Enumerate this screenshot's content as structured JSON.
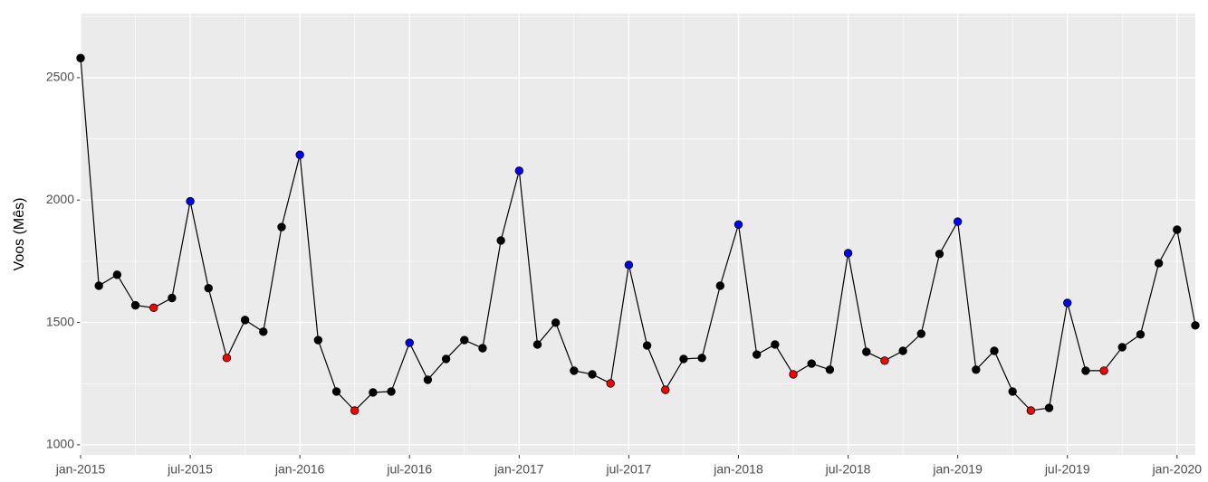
{
  "chart_data": {
    "type": "line",
    "y_label": "Voos (Mês)",
    "categories": [
      "jan-2015",
      null,
      null,
      null,
      null,
      null,
      "jul-2015",
      null,
      null,
      null,
      null,
      null,
      "jan-2016",
      null,
      null,
      null,
      null,
      null,
      "jul-2016",
      null,
      null,
      null,
      null,
      null,
      "jan-2017",
      null,
      null,
      null,
      null,
      null,
      "jul-2017",
      null,
      null,
      null,
      null,
      null,
      "jan-2018",
      null,
      null,
      null,
      null,
      null,
      "jul-2018",
      null,
      null,
      null,
      null,
      null,
      "jan-2019",
      null,
      null,
      null,
      null,
      null,
      "jul-2019",
      null,
      null,
      null,
      null,
      null,
      "jan-2020",
      null
    ],
    "series": [
      {
        "color": "#000000",
        "values": [
          2580,
          1650,
          1695,
          1570,
          1560,
          1600,
          1995,
          1640,
          1355,
          1510,
          1462,
          1890,
          2185,
          1428,
          1218,
          1140,
          1214,
          1218,
          1417,
          1266,
          1351,
          1428,
          1395,
          1835,
          2120,
          1410,
          1499,
          1303,
          1288,
          1251,
          1735,
          1406,
          1225,
          1351,
          1355,
          1650,
          1900,
          1369,
          1410,
          1288,
          1332,
          1307,
          1783,
          1380,
          1344,
          1384,
          1454,
          1780,
          1912,
          1307,
          1384,
          1218,
          1140,
          1151,
          1580,
          1303,
          1303,
          1399,
          1451,
          1742,
          1879,
          1488
        ],
        "point_colors": [
          "#000000",
          "#000000",
          "#000000",
          "#000000",
          "#ff0000",
          "#000000",
          "#0000ff",
          "#000000",
          "#ff0000",
          "#000000",
          "#000000",
          "#000000",
          "#0000ff",
          "#000000",
          "#000000",
          "#ff0000",
          "#000000",
          "#000000",
          "#0000ff",
          "#000000",
          "#000000",
          "#000000",
          "#000000",
          "#000000",
          "#0000ff",
          "#000000",
          "#000000",
          "#000000",
          "#000000",
          "#ff0000",
          "#0000ff",
          "#000000",
          "#ff0000",
          "#000000",
          "#000000",
          "#000000",
          "#0000ff",
          "#000000",
          "#000000",
          "#ff0000",
          "#000000",
          "#000000",
          "#0000ff",
          "#000000",
          "#ff0000",
          "#000000",
          "#000000",
          "#000000",
          "#0000ff",
          "#000000",
          "#000000",
          "#000000",
          "#ff0000",
          "#000000",
          "#0000ff",
          "#000000",
          "#ff0000",
          "#000000",
          "#000000",
          "#000000",
          "#000000",
          "#000000"
        ]
      }
    ],
    "ylim": [
      959,
      2762
    ],
    "yticks": [
      1000,
      1500,
      2000,
      2500
    ],
    "grid": true
  }
}
